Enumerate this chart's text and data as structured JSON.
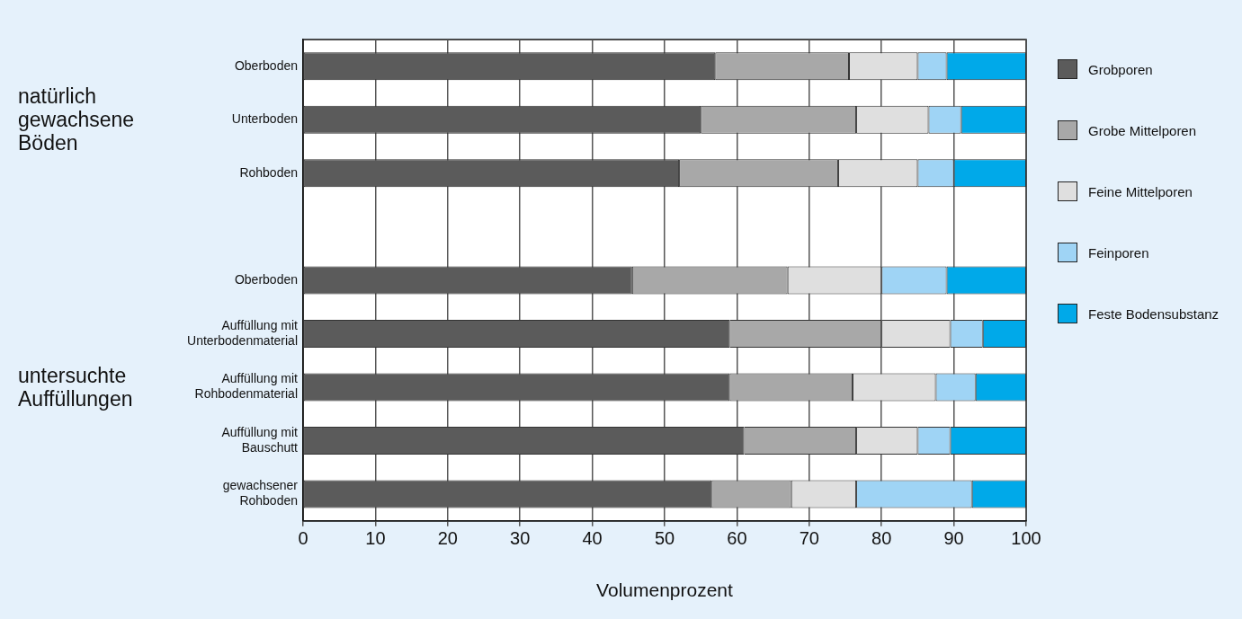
{
  "chart_data": {
    "type": "bar",
    "orientation": "horizontal",
    "stacked": true,
    "categories": [
      "Oberboden",
      "Unterboden",
      "Rohboden",
      null,
      "Oberboden",
      "Auffüllung mit Unterbodenmaterial",
      "Auffüllung mit Rohbodenmaterial",
      "Auffüllung mit Bauschutt",
      "gewachsener Rohboden"
    ],
    "series": [
      {
        "name": "Grobporen",
        "color": "#5b5b5b",
        "values": [
          57,
          55,
          52,
          null,
          45.5,
          59,
          59,
          61,
          56.5
        ]
      },
      {
        "name": "Grobe Mittelporen",
        "color": "#a8a8a8",
        "values": [
          18.5,
          21.5,
          22,
          null,
          21.5,
          21,
          17,
          15.5,
          11
        ]
      },
      {
        "name": "Feine Mittelporen",
        "color": "#dfdfdf",
        "values": [
          9.5,
          10,
          11,
          null,
          13,
          9.5,
          11.5,
          8.5,
          9
        ]
      },
      {
        "name": "Feinporen",
        "color": "#9fd4f5",
        "values": [
          4,
          4.5,
          5,
          null,
          9,
          4.5,
          5.5,
          4.5,
          16
        ]
      },
      {
        "name": "Feste Bodensubstanz",
        "color": "#00a9e9",
        "values": [
          11,
          9,
          10,
          null,
          11,
          6,
          7,
          10.5,
          7.5
        ]
      }
    ],
    "xlim": [
      0,
      100
    ],
    "xticks": [
      0,
      10,
      20,
      30,
      40,
      50,
      60,
      70,
      80,
      90,
      100
    ],
    "xlabel": "Volumenprozent",
    "annotations": [
      "natürlich gewachsene Böden",
      "untersuchte Auffüllungen"
    ],
    "grid": "x",
    "legend": "right"
  }
}
